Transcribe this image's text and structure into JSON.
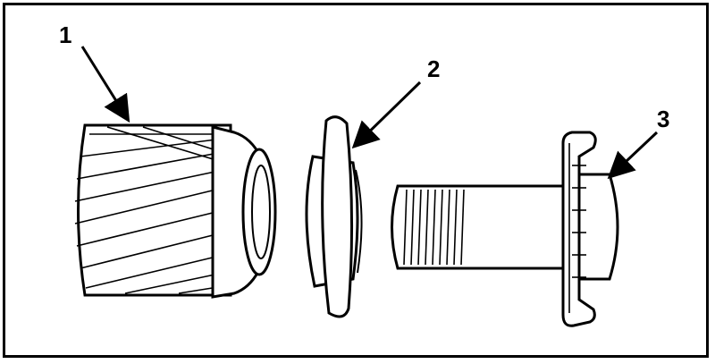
{
  "callouts": [
    {
      "label": "1"
    },
    {
      "label": "2"
    },
    {
      "label": "3"
    }
  ],
  "colors": {
    "ink": "#000000",
    "paper": "#ffffff"
  }
}
